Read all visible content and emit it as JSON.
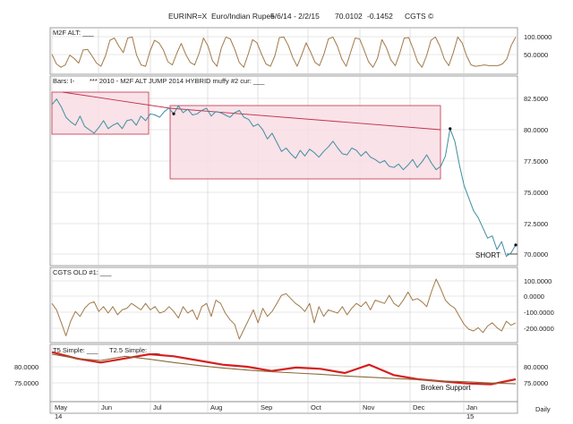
{
  "header": {
    "symbol": "EURINR=X",
    "name": "Euro/Indian Rupee",
    "range": "5/6/14 - 2/2/15",
    "last": "70.0102",
    "change": "-0.1452",
    "brand": "CGTS ©"
  },
  "colors": {
    "price_line": "#3e8ea0",
    "osc_line": "#a07a4a",
    "box_stroke": "#c0304a",
    "box_fill": "#f8dde4",
    "trend_line": "#c0304a",
    "t5_line": "#d42020",
    "t25_line": "#8a6a3a",
    "grid": "#cfcfcf"
  },
  "chart_data": [
    {
      "type": "line",
      "panel": "m2f_alt",
      "title": "M2F ALT: ___",
      "y_ticks": [
        "100.0000",
        "50.0000"
      ],
      "ylim": [
        0,
        110
      ],
      "series": [
        {
          "values": [
            45,
            15,
            5,
            12,
            42,
            32,
            18,
            58,
            60,
            40,
            18,
            8,
            40,
            88,
            95,
            70,
            50,
            95,
            98,
            42,
            12,
            8,
            55,
            88,
            80,
            58,
            22,
            12,
            48,
            78,
            45,
            20,
            12,
            48,
            95,
            70,
            25,
            8,
            65,
            98,
            92,
            60,
            20,
            5,
            45,
            90,
            80,
            45,
            15,
            8,
            40,
            96,
            98,
            72,
            35,
            8,
            42,
            80,
            52,
            20,
            10,
            45,
            92,
            98,
            70,
            30,
            8,
            52,
            95,
            92,
            58,
            22,
            5,
            32,
            90,
            65,
            28,
            10,
            48,
            95,
            96,
            62,
            22,
            5,
            40,
            88,
            98,
            70,
            30,
            10,
            50,
            98,
            80,
            40,
            12,
            8,
            10,
            12,
            10,
            10,
            10,
            15,
            30,
            72,
            98
          ]
        }
      ]
    },
    {
      "type": "line",
      "panel": "price",
      "title": "Bars: I-",
      "subtitle": "*** 2010 - M2F ALT  JUMP 2014 HYBRID  muffy #2 cur: ___",
      "y_ticks": [
        "82.5000",
        "80.0000",
        "77.5000",
        "75.0000",
        "72.5000",
        "70.0000"
      ],
      "ylim": [
        68.5,
        84.5
      ],
      "annotations": [
        "SHORT"
      ],
      "series": [
        {
          "values": [
            82.3,
            82.8,
            82.1,
            81.2,
            80.8,
            80.5,
            81.3,
            80.4,
            80.1,
            79.8,
            80.3,
            80.9,
            80.2,
            80.5,
            80.7,
            80.2,
            80.9,
            81.0,
            80.5,
            81.3,
            80.9,
            81.5,
            81.4,
            81.2,
            81.7,
            82.0,
            81.5,
            82.2,
            81.6,
            81.9,
            81.4,
            81.5,
            81.8,
            82.0,
            81.3,
            81.7,
            81.6,
            81.4,
            81.2,
            81.6,
            81.8,
            81.2,
            81.0,
            80.4,
            80.6,
            80.1,
            79.3,
            79.8,
            79.0,
            78.2,
            78.5,
            78.0,
            77.6,
            78.3,
            77.8,
            78.4,
            78.1,
            77.7,
            78.2,
            78.6,
            79.1,
            78.5,
            78.0,
            77.9,
            78.5,
            78.3,
            77.8,
            78.2,
            77.7,
            77.5,
            77.2,
            77.4,
            76.9,
            76.8,
            77.1,
            76.6,
            77.0,
            77.5,
            76.8,
            77.3,
            77.9,
            77.2,
            76.6,
            76.9,
            77.8,
            80.2,
            79.1,
            77.0,
            75.2,
            74.1,
            73.0,
            72.4,
            71.5,
            70.6,
            70.8,
            69.6,
            70.3,
            69.0,
            69.3,
            70.0
          ]
        }
      ]
    },
    {
      "type": "line",
      "panel": "cgts_old",
      "title": "CGTS OLD #1: ___",
      "y_ticks": [
        "100.0000",
        "0.0000",
        "-100.0000",
        "-200.0000"
      ],
      "ylim": [
        -260,
        160
      ],
      "series": [
        {
          "values": [
            -40,
            -80,
            -160,
            -240,
            -150,
            -90,
            -120,
            -70,
            -40,
            -30,
            -90,
            -60,
            -100,
            -60,
            -110,
            -80,
            -70,
            -40,
            -60,
            -80,
            -40,
            -80,
            -60,
            -100,
            -90,
            -60,
            -90,
            -130,
            -60,
            -100,
            -80,
            -140,
            -60,
            -40,
            -120,
            -20,
            -40,
            -100,
            -140,
            -170,
            -260,
            -200,
            -140,
            -80,
            -160,
            -70,
            -120,
            -90,
            -40,
            10,
            20,
            -10,
            -40,
            -60,
            -90,
            -40,
            -160,
            -60,
            -120,
            -80,
            -90,
            -100,
            -60,
            -110,
            -70,
            -40,
            -60,
            -30,
            -80,
            -20,
            -30,
            -40,
            10,
            -40,
            -60,
            -20,
            30,
            -20,
            -10,
            -30,
            -60,
            30,
            110,
            50,
            -20,
            -50,
            -70,
            -120,
            -170,
            -200,
            -210,
            -190,
            -220,
            -180,
            -160,
            -190,
            -210,
            -150,
            -175,
            -160
          ]
        }
      ]
    },
    {
      "type": "line",
      "panel": "t5_t25",
      "title_t5": "T5 Simple: ___",
      "title_t25": "T2.5 Simple: ___",
      "y_ticks": [
        "80.0000",
        "75.0000"
      ],
      "y_ticks_left": [
        "80.0000",
        "75.0000"
      ],
      "ylim": [
        71.5,
        83.5
      ],
      "annotations": [
        "Broken Support"
      ],
      "series": [
        {
          "values": [
            82.5,
            81.0,
            80.0,
            81.0,
            82.0,
            81.5,
            80.5,
            79.5,
            79.0,
            78.0,
            78.8,
            78.5,
            77.5,
            79.5,
            77.0,
            76.0,
            75.5,
            75.0,
            74.8,
            76.0
          ]
        },
        {
          "values": [
            82.0,
            81.0,
            80.5,
            81.5,
            80.8,
            80.0,
            79.3,
            78.7,
            78.2,
            77.8,
            77.5,
            77.2,
            76.8,
            76.5,
            76.2,
            75.9,
            75.6,
            75.4,
            75.1,
            74.9
          ]
        }
      ]
    }
  ],
  "x_axis": {
    "labels": [
      "May",
      "Jun",
      "Jul",
      "Aug",
      "Sep",
      "Oct",
      "Nov",
      "Dec",
      "Jan"
    ],
    "years": [
      "14",
      "15"
    ],
    "period": "Daily"
  }
}
